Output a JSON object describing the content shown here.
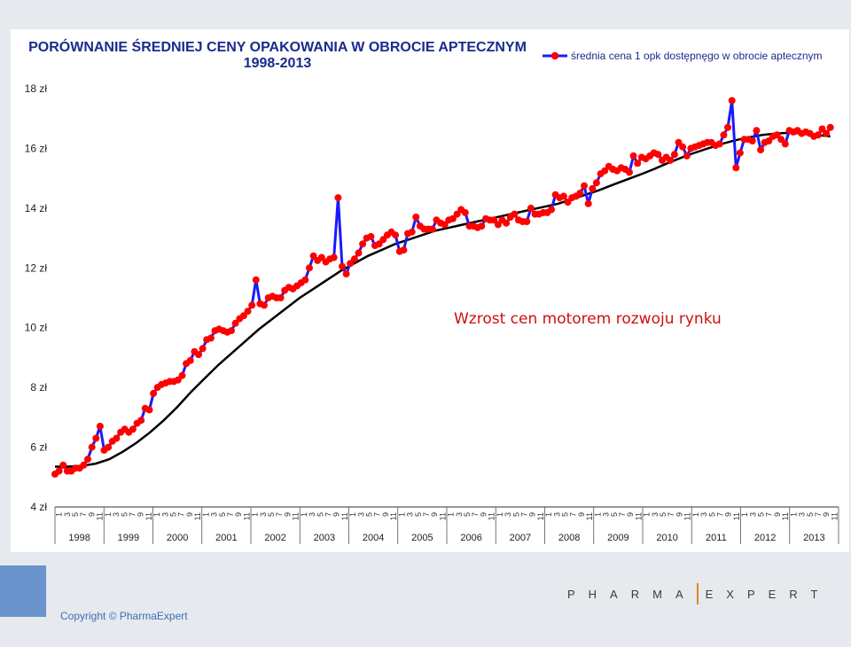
{
  "chart_data": {
    "type": "line",
    "title_lines": [
      "PORÓWNANIE ŚREDNIEJ CENY OPAKOWANIA W OBROCIE APTECZNYM",
      "1998-2013"
    ],
    "legend": {
      "label": "średnia cena 1 opk dostępnęgo w obrocie aptecznym",
      "position": "top-right"
    },
    "annotation": "Wzrost cen motorem rozwoju rynku",
    "y_ticks": [
      "4 zł",
      "6 zł",
      "8 zł",
      "10 zł",
      "12 zł",
      "14 zł",
      "16 zł",
      "18 zł"
    ],
    "ylim": [
      4,
      18
    ],
    "month_ticks": [
      "1",
      "3",
      "5",
      "7",
      "9",
      "11"
    ],
    "years": [
      "1998",
      "1999",
      "2000",
      "2001",
      "2002",
      "2003",
      "2004",
      "2005",
      "2006",
      "2007",
      "2008",
      "2009",
      "2010",
      "2011",
      "2012",
      "2013"
    ],
    "grid": false,
    "series": [
      {
        "name": "średnia cena 1 opk dostępnęgo w obrocie aptecznym",
        "color": "#1a1aff",
        "marker_color": "#ff0000",
        "values": [
          5.1,
          5.2,
          5.4,
          5.2,
          5.2,
          5.3,
          5.3,
          5.4,
          5.6,
          6.0,
          6.3,
          6.7,
          5.9,
          6.0,
          6.2,
          6.3,
          6.5,
          6.6,
          6.5,
          6.6,
          6.8,
          6.9,
          7.3,
          7.25,
          7.8,
          8.0,
          8.1,
          8.15,
          8.2,
          8.2,
          8.25,
          8.4,
          8.8,
          8.9,
          9.2,
          9.1,
          9.3,
          9.6,
          9.65,
          9.9,
          9.95,
          9.9,
          9.85,
          9.9,
          10.15,
          10.3,
          10.4,
          10.55,
          10.75,
          11.6,
          10.8,
          10.75,
          11.0,
          11.05,
          11.0,
          11.0,
          11.25,
          11.35,
          11.3,
          11.4,
          11.5,
          11.6,
          12.0,
          12.4,
          12.25,
          12.35,
          12.2,
          12.3,
          12.35,
          14.35,
          12.05,
          11.8,
          12.15,
          12.3,
          12.5,
          12.8,
          13.0,
          13.05,
          12.75,
          12.8,
          12.95,
          13.1,
          13.2,
          13.1,
          12.55,
          12.6,
          13.15,
          13.2,
          13.7,
          13.4,
          13.3,
          13.3,
          13.3,
          13.6,
          13.5,
          13.45,
          13.6,
          13.65,
          13.8,
          13.95,
          13.85,
          13.4,
          13.4,
          13.35,
          13.4,
          13.65,
          13.6,
          13.6,
          13.45,
          13.6,
          13.5,
          13.7,
          13.8,
          13.6,
          13.55,
          13.55,
          14.0,
          13.8,
          13.8,
          13.85,
          13.85,
          13.95,
          14.45,
          14.35,
          14.4,
          14.2,
          14.35,
          14.4,
          14.5,
          14.75,
          14.15,
          14.65,
          14.85,
          15.15,
          15.25,
          15.4,
          15.3,
          15.25,
          15.35,
          15.3,
          15.2,
          15.75,
          15.5,
          15.7,
          15.65,
          15.75,
          15.85,
          15.8,
          15.6,
          15.7,
          15.6,
          15.8,
          16.2,
          16.05,
          15.75,
          16.0,
          16.05,
          16.1,
          16.15,
          16.2,
          16.2,
          16.1,
          16.15,
          16.45,
          16.7,
          17.6,
          15.35,
          15.85,
          16.3,
          16.3,
          16.25,
          16.6,
          15.95,
          16.2,
          16.25,
          16.4,
          16.45,
          16.3,
          16.15,
          16.6,
          16.55,
          16.6,
          16.5,
          16.55,
          16.5,
          16.4,
          16.45,
          16.65,
          16.5,
          16.7
        ]
      },
      {
        "name": "",
        "color": "#000000",
        "values": [
          5.35,
          5.35,
          5.38,
          5.45,
          5.6,
          5.85,
          6.15,
          6.5,
          6.9,
          7.35,
          7.85,
          8.3,
          8.75,
          9.15,
          9.55,
          9.95,
          10.3,
          10.65,
          11.0,
          11.3,
          11.6,
          11.9,
          12.15,
          12.4,
          12.6,
          12.8,
          12.95,
          13.1,
          13.25,
          13.35,
          13.45,
          13.55,
          13.65,
          13.75,
          13.85,
          13.95,
          14.05,
          14.15,
          14.3,
          14.45,
          14.6,
          14.78,
          14.95,
          15.12,
          15.3,
          15.5,
          15.68,
          15.85,
          16.0,
          16.15,
          16.27,
          16.37,
          16.45,
          16.5,
          16.52,
          16.5,
          16.45,
          16.4
        ]
      }
    ]
  },
  "footer": {
    "copyright": "Copyright © PharmaExpert",
    "brand_left": "PHARMA",
    "brand_right": "EXPERT"
  }
}
